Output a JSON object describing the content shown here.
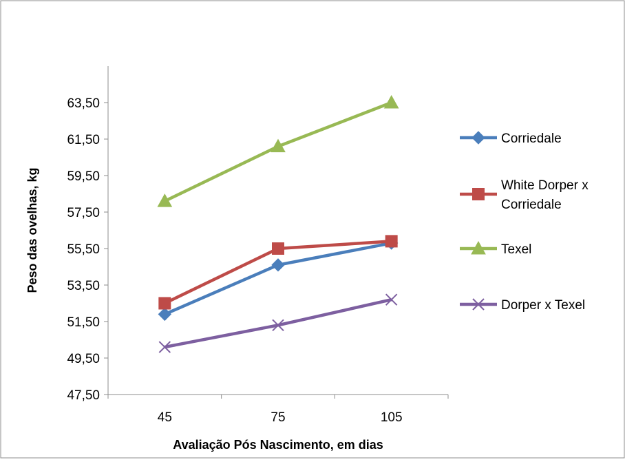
{
  "chart_data": {
    "type": "line",
    "title": "",
    "xlabel": "Avaliação Pós Nascimento, em dias",
    "ylabel": "Peso das ovelhas, kg",
    "categories": [
      "45",
      "75",
      "105"
    ],
    "ylim": [
      47.5,
      65.5
    ],
    "y_ticks": [
      "47,50",
      "49,50",
      "51,50",
      "53,50",
      "55,50",
      "57,50",
      "59,50",
      "61,50",
      "63,50"
    ],
    "grid": false,
    "legend_position": "right",
    "series": [
      {
        "name": "Corriedale",
        "values": [
          51.9,
          54.6,
          55.8
        ],
        "color": "#4a7ebb",
        "marker": "diamond"
      },
      {
        "name": "White Dorper x Corriedale",
        "values": [
          52.5,
          55.5,
          55.9
        ],
        "color": "#be4b48",
        "marker": "square"
      },
      {
        "name": "Texel",
        "values": [
          58.1,
          61.1,
          63.5
        ],
        "color": "#98b954",
        "marker": "triangle"
      },
      {
        "name": "Dorper x Texel",
        "values": [
          50.1,
          51.3,
          52.7
        ],
        "color": "#7d5fa0",
        "marker": "x"
      }
    ],
    "legend_labels": [
      [
        "Corriedale"
      ],
      [
        "White Dorper x",
        "Corriedale"
      ],
      [
        "Texel"
      ],
      [
        "Dorper x Texel"
      ]
    ]
  }
}
